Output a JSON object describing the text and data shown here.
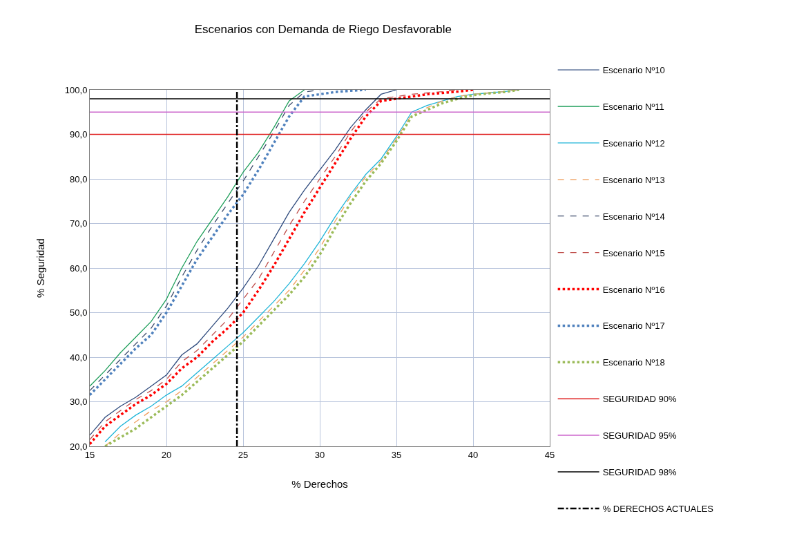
{
  "chart_data": {
    "type": "line",
    "title": "Escenarios con Demanda de Riego Desfavorable",
    "xlabel": "% Derechos",
    "ylabel": "% Seguridad",
    "x": [
      15,
      16,
      17,
      18,
      19,
      20,
      21,
      22,
      23,
      24,
      25,
      26,
      27,
      28,
      29,
      30,
      31,
      32,
      33,
      34,
      35,
      36,
      37,
      38,
      39,
      40,
      41,
      42,
      43
    ],
    "series": [
      {
        "name": "Escenario Nº10",
        "color": "#2e4a7d",
        "line_style": "solid",
        "values": [
          22.5,
          26.5,
          29,
          31,
          33.5,
          36,
          40.5,
          43,
          47,
          51,
          55.5,
          60.5,
          66.5,
          72.5,
          77.5,
          82,
          86.5,
          91.5,
          95.5,
          99,
          100,
          null,
          null,
          null,
          null,
          null,
          null,
          null,
          null
        ]
      },
      {
        "name": "Escenario Nº11",
        "color": "#1e9e5a",
        "line_style": "solid",
        "values": [
          33.5,
          37,
          41,
          44.5,
          48,
          53,
          60,
          66,
          71,
          76,
          81.5,
          86,
          91.5,
          97.5,
          100,
          null,
          null,
          null,
          null,
          null,
          null,
          null,
          null,
          null,
          null,
          null,
          null,
          null,
          null
        ]
      },
      {
        "name": "Escenario Nº12",
        "color": "#1fb5d8",
        "line_style": "solid",
        "values": [
          null,
          21,
          24.5,
          27,
          29,
          31.5,
          33.5,
          36.5,
          39.5,
          42.5,
          45.5,
          49,
          52.5,
          56.5,
          61,
          66,
          71.5,
          76.5,
          81,
          84.5,
          89.5,
          95,
          96.5,
          97.5,
          98.5,
          99,
          99.3,
          99.6,
          100
        ]
      },
      {
        "name": "Escenario Nº13",
        "color": "#f0a060",
        "line_style": "dashed",
        "values": [
          null,
          20,
          23,
          25.5,
          28,
          30,
          32.5,
          35.5,
          38.5,
          41.5,
          44.5,
          48,
          51.5,
          55,
          59.5,
          64.5,
          70.5,
          76,
          80.5,
          84,
          89,
          94.5,
          96,
          97.5,
          98.5,
          99,
          99.3,
          99.6,
          100
        ]
      },
      {
        "name": "Escenario Nº14",
        "color": "#3a4a6a",
        "line_style": "dashed",
        "values": [
          32.5,
          36,
          39.5,
          43,
          46.5,
          51.5,
          58,
          64,
          69.5,
          74.5,
          79.5,
          85,
          90.5,
          96.5,
          99.5,
          100,
          null,
          null,
          null,
          null,
          null,
          null,
          null,
          null,
          null,
          null,
          null,
          null,
          null
        ]
      },
      {
        "name": "Escenario Nº15",
        "color": "#c0504d",
        "line_style": "dashed",
        "values": [
          21.5,
          25.5,
          28,
          30.5,
          32.5,
          35,
          39,
          41.5,
          45,
          48.5,
          53,
          57.5,
          63.5,
          69.5,
          75,
          80,
          85,
          90.5,
          95,
          98,
          98.5,
          99,
          99.3,
          99.6,
          100,
          null,
          null,
          null,
          null
        ]
      },
      {
        "name": "Escenario Nº16",
        "color": "#ff0000",
        "line_style": "dotted",
        "values": [
          20.5,
          24.5,
          27,
          29.5,
          31.5,
          34,
          37.5,
          40,
          43.5,
          46.5,
          50,
          55,
          60.5,
          66.5,
          72.5,
          78,
          83.5,
          89,
          94,
          97.5,
          98,
          98.5,
          99,
          99.3,
          99.6,
          100,
          null,
          null,
          null
        ]
      },
      {
        "name": "Escenario Nº17",
        "color": "#4f81bd",
        "line_style": "dotted",
        "values": [
          31.5,
          35,
          38.5,
          42,
          45,
          50,
          56,
          62,
          67,
          72,
          76.5,
          82,
          88,
          94,
          98.5,
          99,
          99.5,
          99.8,
          100,
          null,
          null,
          null,
          null,
          null,
          null,
          null,
          null,
          null,
          null
        ]
      },
      {
        "name": "Escenario Nº18",
        "color": "#9bbb59",
        "line_style": "dotted",
        "values": [
          null,
          20,
          22,
          24,
          26.5,
          29,
          31.5,
          34.5,
          37.5,
          40.5,
          43.5,
          47,
          50.5,
          54,
          58,
          63,
          69,
          74.5,
          79.5,
          83.5,
          88.5,
          94,
          95.5,
          97,
          98,
          98.8,
          99.2,
          99.5,
          100
        ]
      }
    ],
    "ref_lines": [
      {
        "axis": "y",
        "value": 90,
        "label": "SEGURIDAD 90%",
        "color": "#e02020",
        "line_style": "solid"
      },
      {
        "axis": "y",
        "value": 95,
        "label": "SEGURIDAD 95%",
        "color": "#cc66cc",
        "line_style": "solid"
      },
      {
        "axis": "y",
        "value": 98,
        "label": "SEGURIDAD 98%",
        "color": "#000000",
        "line_style": "solid"
      },
      {
        "axis": "x",
        "value": 24.6,
        "label": "% DERECHOS ACTUALES",
        "color": "#000000",
        "line_style": "dashdot"
      }
    ],
    "xlim": [
      15,
      45
    ],
    "xticks": [
      15,
      20,
      25,
      30,
      35,
      40,
      45
    ],
    "ylim": [
      20,
      100
    ],
    "yticks": [
      {
        "value": 20,
        "label": "20,0"
      },
      {
        "value": 30,
        "label": "30,0"
      },
      {
        "value": 40,
        "label": "40,0"
      },
      {
        "value": 50,
        "label": "50,0"
      },
      {
        "value": 60,
        "label": "60,0"
      },
      {
        "value": 70,
        "label": "70,0"
      },
      {
        "value": 80,
        "label": "80,0"
      },
      {
        "value": 90,
        "label": "90,0"
      },
      {
        "value": 100,
        "label": "100,0"
      }
    ],
    "grid": true,
    "legend": "right",
    "marker": "none"
  }
}
